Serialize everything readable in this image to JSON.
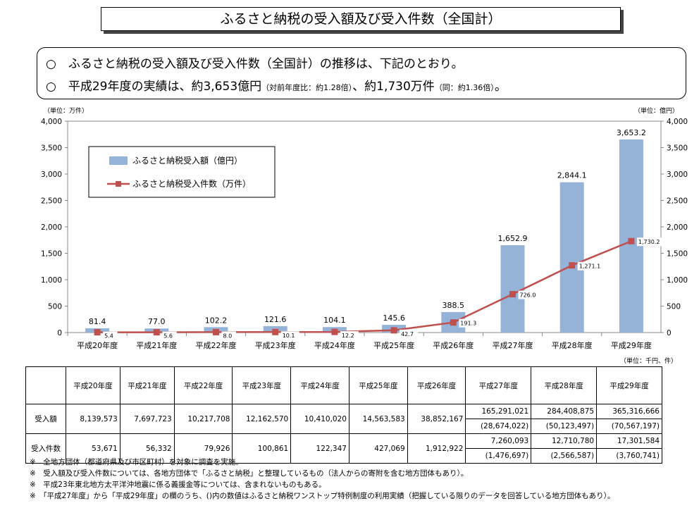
{
  "title": "ふるさと納税の受入額及び受入件数（全国計）",
  "summary": {
    "line1": "○　ふるさと納税の受入額及び受入件数（全国計）の推移は、下記のとおり。",
    "line2_a": "○　平成29年度の実績は、約3,653億円",
    "line2_b": "（対前年度比：約1.28倍）",
    "line2_c": "、約1,730万件",
    "line2_d": "（同：約1.36倍）",
    "line2_e": "。"
  },
  "chart_data": {
    "type": "bar+line",
    "categories": [
      "平成20年度",
      "平成21年度",
      "平成22年度",
      "平成23年度",
      "平成24年度",
      "平成25年度",
      "平成26年度",
      "平成27年度",
      "平成28年度",
      "平成29年度"
    ],
    "series": [
      {
        "name": "ふるさと納税受入額（億円）",
        "type": "bar",
        "axis": "right",
        "color": "#95b3d7",
        "values": [
          81.4,
          77.0,
          102.2,
          121.6,
          104.1,
          145.6,
          388.5,
          1652.9,
          2844.1,
          3653.2
        ],
        "labels": [
          "81.4",
          "77.0",
          "102.2",
          "121.6",
          "104.1",
          "145.6",
          "388.5",
          "1,652.9",
          "2,844.1",
          "3,653.2"
        ]
      },
      {
        "name": "ふるさと納税受入件数（万件）",
        "type": "line",
        "axis": "left",
        "color": "#c0504d",
        "values": [
          5.4,
          5.6,
          8.0,
          10.1,
          12.2,
          42.7,
          191.3,
          726.0,
          1271.1,
          1730.2
        ],
        "labels": [
          "5.4",
          "5.6",
          "8.0",
          "10.1",
          "12.2",
          "42.7",
          "191.3",
          "726.0",
          "1,271.1",
          "1,730.2"
        ]
      }
    ],
    "left_unit": "（単位：万件）",
    "right_unit": "（単位：億円）",
    "ylim": [
      0,
      4000
    ],
    "ticks": [
      "0",
      "500",
      "1,000",
      "1,500",
      "2,000",
      "2,500",
      "3,000",
      "3,500",
      "4,000"
    ],
    "legend": "top-left"
  },
  "table": {
    "unit": "（単位：千円、件）",
    "headers": [
      "平成20年度",
      "平成21年度",
      "平成22年度",
      "平成23年度",
      "平成24年度",
      "平成25年度",
      "平成26年度",
      "平成27年度",
      "平成28年度",
      "平成29年度"
    ],
    "rows": [
      {
        "label": "受入額",
        "values": [
          "8,139,573",
          "7,697,723",
          "10,217,708",
          "12,162,570",
          "10,410,020",
          "14,563,583",
          "38,852,167",
          "165,291,021",
          "284,408,875",
          "365,316,666"
        ],
        "sub": [
          "",
          "",
          "",
          "",
          "",
          "",
          "",
          "(28,674,022)",
          "(50,123,497)",
          "(70,567,197)"
        ]
      },
      {
        "label": "受入件数",
        "values": [
          "53,671",
          "56,332",
          "79,926",
          "100,861",
          "122,347",
          "427,069",
          "1,912,922",
          "7,260,093",
          "12,710,780",
          "17,301,584"
        ],
        "sub": [
          "",
          "",
          "",
          "",
          "",
          "",
          "",
          "(1,476,697)",
          "(2,566,587)",
          "(3,760,741)"
        ]
      }
    ]
  },
  "notes": [
    "※　全地方団体（都道府県及び市区町村）を対象に調査を実施。",
    "※　受入額及び受入件数については、各地方団体で「ふるさと納税」と整理しているもの（法人からの寄附を含む地方団体もあり）。",
    "※　平成23年東北地方太平洋沖地震に係る義援金等については、含まれないものもある。",
    "※　「平成27年度」から「平成29年度」の欄のうち、()内の数値はふるさと納税ワンストップ特例制度の利用実績（把握している限りのデータを回答している地方団体もあり）。"
  ]
}
